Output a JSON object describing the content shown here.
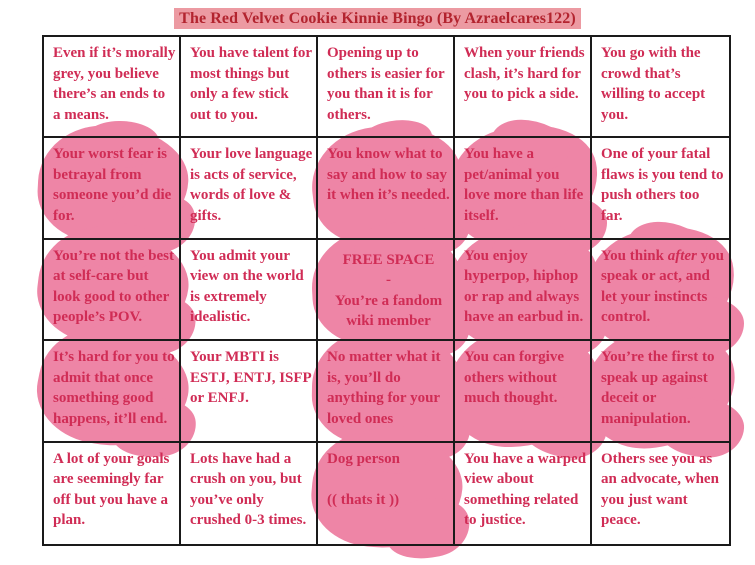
{
  "title": "The Red Velvet Cookie Kinnie Bingo (By Azraelcares122)",
  "colors": {
    "background": "#ffffff",
    "title_highlight": "#ec9aa2",
    "title_text": "#b3242f",
    "cell_text": "#d02c55",
    "marker_pink": "#ee85a6",
    "grid_line": "#1a1a1a"
  },
  "grid": {
    "rows": 5,
    "cols": 5,
    "cells": [
      {
        "text": "Even if it’s morally grey, you believe there’s an ends to a means.",
        "marked": false
      },
      {
        "text": "You have talent for most things but only a few stick out to you.",
        "marked": false
      },
      {
        "text": "Opening up to others is easier for you than it is for others.",
        "marked": false
      },
      {
        "text": "When your friends clash, it’s hard for you to pick a side.",
        "marked": false
      },
      {
        "text": "You go with the crowd that’s willing to accept you.",
        "marked": false
      },
      {
        "text": "Your worst fear is betrayal from someone you’d die for.",
        "marked": true
      },
      {
        "text": "Your love language is acts of service, words of love & gifts.",
        "marked": false
      },
      {
        "text": "You know what to say and how to say it when it’s needed.",
        "marked": true
      },
      {
        "text": "You have a pet/animal you love more than life itself.",
        "marked": true
      },
      {
        "text": "One of your fatal flaws is you tend to push others too far.",
        "marked": false
      },
      {
        "text": "You’re not the best at self-care but look good to other people’s POV.",
        "marked": true
      },
      {
        "text": "You admit your view on the world is extremely idealistic.",
        "marked": false
      },
      {
        "text": "FREE SPACE\n-\nYou’re a fandom wiki member",
        "marked": true,
        "center": true
      },
      {
        "text": "You enjoy hyperpop, hiphop or rap and always have an earbud in.",
        "marked": true
      },
      {
        "text": "You think *after* you speak or act, and let your instincts control.",
        "marked": true
      },
      {
        "text": "It’s hard for you to admit that once something good happens, it’ll end.",
        "marked": true
      },
      {
        "text": "Your MBTI is ESTJ, ENTJ, ISFP or ENFJ.",
        "marked": false
      },
      {
        "text": "No matter what it is, you’ll do anything for your loved ones",
        "marked": true
      },
      {
        "text": "You can forgive others without much thought.",
        "marked": true
      },
      {
        "text": "You’re the first to speak up against deceit or manipulation.",
        "marked": true
      },
      {
        "text": "A lot of your goals are seemingly far off but you have a plan.",
        "marked": false
      },
      {
        "text": "Lots have had a crush on you, but you’ve only crushed 0-3 times.",
        "marked": false
      },
      {
        "text": "Dog person\n\n(( thats it ))",
        "marked": true
      },
      {
        "text": "You have a warped view about something related to justice.",
        "marked": false
      },
      {
        "text": "Others see you as an advocate, when you just want peace.",
        "marked": false
      }
    ]
  }
}
